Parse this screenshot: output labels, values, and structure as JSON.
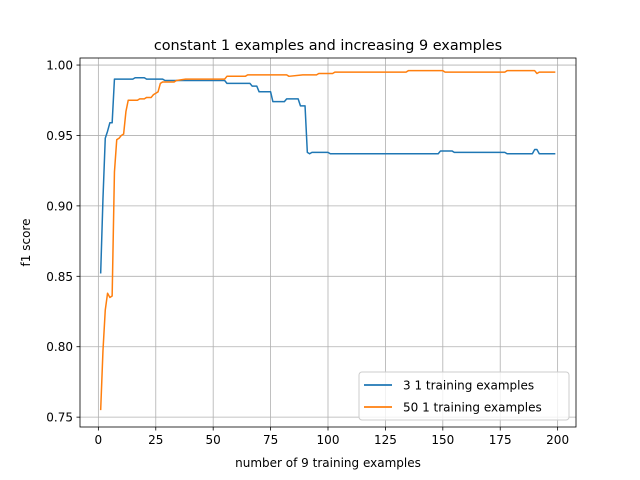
{
  "chart_data": {
    "type": "line",
    "title": "constant 1 examples and increasing 9 examples",
    "xlabel": "number of 9 training examples",
    "ylabel": "f1 score",
    "xlim": [
      -8,
      208
    ],
    "ylim": [
      0.743,
      1.005
    ],
    "grid": true,
    "legend_position": "lower right",
    "x_ticks": [
      0,
      25,
      50,
      75,
      100,
      125,
      150,
      175,
      200
    ],
    "x_tick_labels": [
      "0",
      "25",
      "50",
      "75",
      "100",
      "125",
      "150",
      "175",
      "200"
    ],
    "y_ticks": [
      0.75,
      0.8,
      0.85,
      0.9,
      0.95,
      1.0
    ],
    "y_tick_labels": [
      "0.75",
      "0.80",
      "0.85",
      "0.90",
      "0.95",
      "1.00"
    ],
    "series": [
      {
        "name": "3 1 training examples",
        "color": "#1f77b4",
        "points": [
          [
            1,
            0.852
          ],
          [
            2,
            0.905
          ],
          [
            3,
            0.948
          ],
          [
            4,
            0.953
          ],
          [
            5,
            0.959
          ],
          [
            6,
            0.959
          ],
          [
            7,
            0.99
          ],
          [
            15,
            0.99
          ],
          [
            16,
            0.991
          ],
          [
            20,
            0.991
          ],
          [
            21,
            0.99
          ],
          [
            28,
            0.99
          ],
          [
            29,
            0.989
          ],
          [
            55,
            0.989
          ],
          [
            56,
            0.987
          ],
          [
            66,
            0.987
          ],
          [
            67,
            0.985
          ],
          [
            69,
            0.985
          ],
          [
            70,
            0.981
          ],
          [
            75,
            0.981
          ],
          [
            76,
            0.974
          ],
          [
            81,
            0.974
          ],
          [
            82,
            0.976
          ],
          [
            87,
            0.976
          ],
          [
            88,
            0.971
          ],
          [
            90,
            0.971
          ],
          [
            91,
            0.938
          ],
          [
            92,
            0.937
          ],
          [
            93,
            0.938
          ],
          [
            100,
            0.938
          ],
          [
            101,
            0.937
          ],
          [
            148,
            0.937
          ],
          [
            149,
            0.939
          ],
          [
            154,
            0.939
          ],
          [
            155,
            0.938
          ],
          [
            177,
            0.938
          ],
          [
            178,
            0.937
          ],
          [
            189,
            0.937
          ],
          [
            190,
            0.94
          ],
          [
            191,
            0.94
          ],
          [
            192,
            0.937
          ],
          [
            199,
            0.937
          ]
        ]
      },
      {
        "name": "50 1 training examples",
        "color": "#ff7f0e",
        "points": [
          [
            1,
            0.755
          ],
          [
            2,
            0.797
          ],
          [
            3,
            0.826
          ],
          [
            4,
            0.838
          ],
          [
            5,
            0.835
          ],
          [
            6,
            0.836
          ],
          [
            7,
            0.924
          ],
          [
            8,
            0.947
          ],
          [
            9,
            0.948
          ],
          [
            10,
            0.95
          ],
          [
            11,
            0.951
          ],
          [
            12,
            0.967
          ],
          [
            13,
            0.975
          ],
          [
            17,
            0.975
          ],
          [
            18,
            0.976
          ],
          [
            20,
            0.976
          ],
          [
            21,
            0.977
          ],
          [
            23,
            0.977
          ],
          [
            24,
            0.979
          ],
          [
            25,
            0.98
          ],
          [
            26,
            0.981
          ],
          [
            27,
            0.987
          ],
          [
            28,
            0.988
          ],
          [
            33,
            0.988
          ],
          [
            34,
            0.989
          ],
          [
            38,
            0.99
          ],
          [
            55,
            0.99
          ],
          [
            56,
            0.992
          ],
          [
            64,
            0.992
          ],
          [
            65,
            0.993
          ],
          [
            82,
            0.993
          ],
          [
            83,
            0.992
          ],
          [
            89,
            0.993
          ],
          [
            95,
            0.993
          ],
          [
            96,
            0.994
          ],
          [
            102,
            0.994
          ],
          [
            103,
            0.995
          ],
          [
            134,
            0.995
          ],
          [
            135,
            0.996
          ],
          [
            150,
            0.996
          ],
          [
            151,
            0.995
          ],
          [
            177,
            0.995
          ],
          [
            178,
            0.996
          ],
          [
            190,
            0.996
          ],
          [
            191,
            0.994
          ],
          [
            192,
            0.995
          ],
          [
            199,
            0.995
          ]
        ]
      }
    ]
  }
}
